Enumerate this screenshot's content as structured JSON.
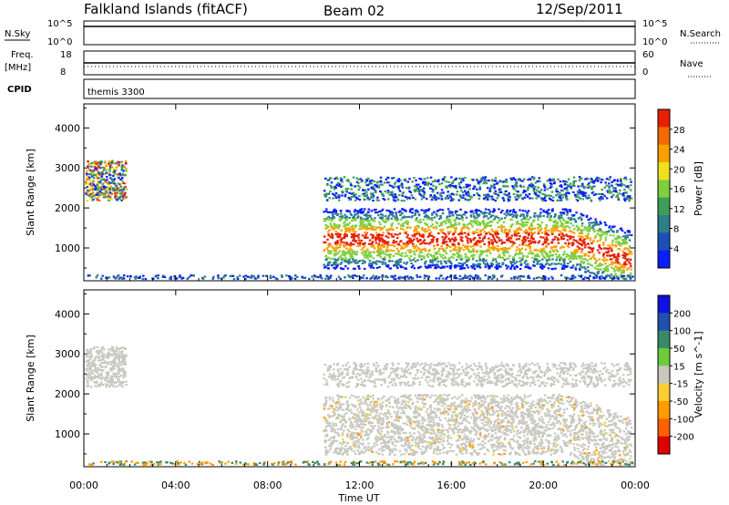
{
  "header": {
    "site": "Falkland Islands (fitACF)",
    "beam": "Beam 02",
    "date": "12/Sep/2011"
  },
  "strip_labels": {
    "nsky": "N.Sky",
    "nsky_hi": "10^5",
    "nsky_lo": "10^0",
    "nsearch": "N.Search",
    "nsearch_hi": "10^5",
    "nsearch_lo": "10^0",
    "freq_line1": "Freq.",
    "freq_line2": "[MHz]",
    "freq_hi": "18",
    "freq_lo": "8",
    "nave": "Nave",
    "nave_hi": "60",
    "nave_lo": "0",
    "cpid": "CPID",
    "cpid_value": "themis 3300"
  },
  "chart_data": [
    {
      "type": "heatmap",
      "quantity": "Power",
      "ylabel": "Slant Range [km]",
      "colorbar_label": "Power [dB]",
      "ylim": [
        180,
        4600
      ],
      "yticks": [
        1000,
        2000,
        3000,
        4000
      ],
      "colorbar_ticks": [
        4,
        8,
        12,
        16,
        20,
        24,
        28
      ],
      "colorbar_colors": [
        "#0a1eff",
        "#1e4fb8",
        "#2d7f8a",
        "#3f9d5a",
        "#7fcf3f",
        "#f0e020",
        "#f6a100",
        "#f26a00",
        "#e62000"
      ]
    },
    {
      "type": "heatmap",
      "quantity": "Velocity",
      "ylabel": "Slant Range [km]",
      "colorbar_label": "Velocity [m s^-1]",
      "ylim": [
        180,
        4600
      ],
      "yticks": [
        1000,
        2000,
        3000,
        4000
      ],
      "colorbar_ticks": [
        -200,
        -100,
        -50,
        -15,
        15,
        50,
        100,
        200
      ],
      "colorbar_colors": [
        "#e00000",
        "#ff6000",
        "#ff9c00",
        "#ffcc33",
        "#c8c8c0",
        "#6ccc3a",
        "#3a8a6a",
        "#2050b0",
        "#1010e0"
      ]
    }
  ],
  "time_axis": {
    "label": "Time UT",
    "ticks": [
      "00:00",
      "04:00",
      "08:00",
      "12:00",
      "16:00",
      "20:00",
      "00:00"
    ],
    "range_hours": [
      0,
      24
    ]
  }
}
